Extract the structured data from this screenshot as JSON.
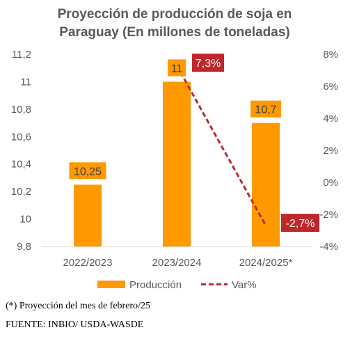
{
  "chart_data": {
    "type": "bar",
    "title": [
      "Proyección de producción de soja en",
      "Paraguay (En millones de toneladas)"
    ],
    "categories": [
      "2022/2023",
      "2023/2024",
      "2024/2025*"
    ],
    "series": [
      {
        "name": "Producción",
        "type": "bar",
        "axis": "left",
        "values": [
          10.25,
          11,
          10.7
        ],
        "labels": [
          "10,25",
          "11",
          "10,7"
        ],
        "color": "#FF9900"
      },
      {
        "name": "Var%",
        "type": "line",
        "axis": "right",
        "style": "dashed",
        "values": [
          null,
          7.3,
          -2.7
        ],
        "labels": [
          "",
          "7,3%",
          "-2,7%"
        ],
        "color": "#C0272D"
      }
    ],
    "y_left": {
      "min": 9.8,
      "max": 11.2,
      "step": 0.2,
      "tick_labels": [
        "9,8",
        "10",
        "10,2",
        "10,4",
        "10,6",
        "10,8",
        "11",
        "11,2"
      ]
    },
    "y_right": {
      "min": -4,
      "max": 8,
      "step": 2,
      "tick_labels": [
        "-4%",
        "-2%",
        "0%",
        "2%",
        "4%",
        "6%",
        "8%"
      ]
    },
    "grid": false,
    "legend": "bottom"
  },
  "footnotes": {
    "projection": "(*) Proyección del mes de febrero/25",
    "source": "FUENTE: INBIO/ USDA-WASDE"
  }
}
